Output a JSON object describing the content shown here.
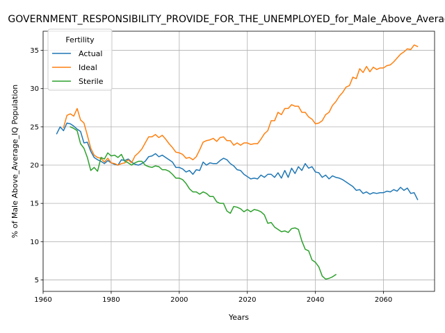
{
  "chart_data": {
    "type": "line",
    "title": "GOVERNMENT_RESPONSIBILITY_PROVIDE_FOR_THE_UNEMPLOYED_for_Male_Above_Average_IQ",
    "xlabel": "Years",
    "ylabel": "% of Male Above_Average_IQ Population",
    "xlim": [
      1960,
      2075
    ],
    "ylim": [
      3.5,
      37.5
    ],
    "xticks": [
      1960,
      1980,
      2000,
      2020,
      2040,
      2060
    ],
    "yticks": [
      5,
      10,
      15,
      20,
      25,
      30,
      35
    ],
    "grid": true,
    "legend": {
      "title": "Fertility",
      "position": "upper-left"
    },
    "series": [
      {
        "name": "Actual",
        "color": "#1f77b4",
        "x": [
          1964,
          1965,
          1966,
          1967,
          1968,
          1969,
          1970,
          1971,
          1972,
          1973,
          1974,
          1975,
          1976,
          1977,
          1978,
          1979,
          1980,
          1981,
          1982,
          1983,
          1984,
          1985,
          1986,
          1987,
          1988,
          1989,
          1990,
          1991,
          1992,
          1993,
          1994,
          1995,
          1996,
          1997,
          1998,
          1999,
          2000,
          2001,
          2002,
          2003,
          2004,
          2005,
          2006,
          2007,
          2008,
          2009,
          2010,
          2011,
          2012,
          2013,
          2014,
          2015,
          2016,
          2017,
          2018,
          2019,
          2020,
          2021,
          2022,
          2023,
          2024,
          2025,
          2026,
          2027,
          2028,
          2029,
          2030,
          2031,
          2032,
          2033,
          2034,
          2035,
          2036,
          2037,
          2038,
          2039,
          2040,
          2041,
          2042,
          2043,
          2044,
          2045,
          2046,
          2047,
          2048,
          2049,
          2050,
          2051,
          2052,
          2053,
          2054,
          2055,
          2056,
          2057,
          2058,
          2059,
          2060,
          2061,
          2062,
          2063,
          2064,
          2065,
          2066,
          2067,
          2068,
          2069,
          2070
        ],
        "y": [
          24.1,
          25.0,
          24.5,
          25.5,
          25.4,
          25.1,
          24.7,
          24.4,
          22.9,
          23.0,
          21.8,
          21.0,
          20.7,
          20.5,
          20.2,
          20.6,
          20.3,
          20.1,
          20.0,
          20.7,
          20.6,
          20.8,
          20.4,
          20.1,
          20.0,
          20.2,
          20.5,
          21.1,
          21.2,
          21.5,
          21.1,
          21.3,
          21.0,
          20.7,
          20.4,
          19.7,
          19.7,
          19.5,
          19.1,
          19.3,
          18.8,
          19.4,
          19.3,
          20.4,
          20.0,
          20.3,
          20.2,
          20.2,
          20.6,
          20.9,
          20.7,
          20.2,
          19.9,
          19.4,
          19.3,
          18.8,
          18.5,
          18.2,
          18.3,
          18.2,
          18.7,
          18.4,
          18.8,
          18.8,
          18.4,
          19.0,
          18.3,
          19.3,
          18.4,
          19.6,
          18.9,
          19.8,
          19.3,
          20.2,
          19.6,
          19.8,
          19.1,
          19.0,
          18.4,
          18.7,
          18.2,
          18.6,
          18.4,
          18.3,
          18.1,
          17.8,
          17.5,
          17.2,
          16.7,
          16.8,
          16.3,
          16.5,
          16.2,
          16.4,
          16.3,
          16.4,
          16.4,
          16.6,
          16.5,
          16.8,
          16.6,
          17.1,
          16.7,
          17.0,
          16.3,
          16.4,
          15.5
        ]
      },
      {
        "name": "Ideal",
        "color": "#ff7f0e",
        "x": [
          1966,
          1967,
          1968,
          1969,
          1970,
          1971,
          1972,
          1973,
          1974,
          1975,
          1976,
          1977,
          1978,
          1979,
          1980,
          1981,
          1982,
          1983,
          1984,
          1985,
          1986,
          1987,
          1988,
          1989,
          1990,
          1991,
          1992,
          1993,
          1994,
          1995,
          1996,
          1997,
          1998,
          1999,
          2000,
          2001,
          2002,
          2003,
          2004,
          2005,
          2006,
          2007,
          2008,
          2009,
          2010,
          2011,
          2012,
          2013,
          2014,
          2015,
          2016,
          2017,
          2018,
          2019,
          2020,
          2021,
          2022,
          2023,
          2024,
          2025,
          2026,
          2027,
          2028,
          2029,
          2030,
          2031,
          2032,
          2033,
          2034,
          2035,
          2036,
          2037,
          2038,
          2039,
          2040,
          2041,
          2042,
          2043,
          2044,
          2045,
          2046,
          2047,
          2048,
          2049,
          2050,
          2051,
          2052,
          2053,
          2054,
          2055,
          2056,
          2057,
          2058,
          2059,
          2060,
          2061,
          2062,
          2063,
          2064,
          2065,
          2066,
          2067,
          2068,
          2069,
          2070
        ],
        "y": [
          24.9,
          26.5,
          26.7,
          26.4,
          27.4,
          25.9,
          25.5,
          23.9,
          22.2,
          21.3,
          21.0,
          20.9,
          20.4,
          20.9,
          20.3,
          20.2,
          20.0,
          20.2,
          20.3,
          20.7,
          20.3,
          21.2,
          21.6,
          22.1,
          22.9,
          23.7,
          23.7,
          24.0,
          23.6,
          23.9,
          23.4,
          22.8,
          22.3,
          21.7,
          21.6,
          21.4,
          20.9,
          21.0,
          20.7,
          21.1,
          22.0,
          23.0,
          23.2,
          23.3,
          23.5,
          23.1,
          23.6,
          23.7,
          23.2,
          23.2,
          22.6,
          22.9,
          22.6,
          22.9,
          22.9,
          22.7,
          22.8,
          22.8,
          23.4,
          24.1,
          24.5,
          25.8,
          25.8,
          26.9,
          26.6,
          27.4,
          27.4,
          27.9,
          27.7,
          27.7,
          26.9,
          26.9,
          26.3,
          26.0,
          25.4,
          25.5,
          25.8,
          26.6,
          26.9,
          27.8,
          28.3,
          29.0,
          29.5,
          30.2,
          30.4,
          31.5,
          31.3,
          32.6,
          32.1,
          32.9,
          32.2,
          32.8,
          32.5,
          32.7,
          32.7,
          33.0,
          33.1,
          33.5,
          34.0,
          34.5,
          34.8,
          35.2,
          35.1,
          35.7,
          35.5
        ]
      },
      {
        "name": "Sterile",
        "color": "#2ca02c",
        "x": [
          1968,
          1969,
          1970,
          1971,
          1972,
          1973,
          1974,
          1975,
          1976,
          1977,
          1978,
          1979,
          1980,
          1981,
          1982,
          1983,
          1984,
          1985,
          1986,
          1987,
          1988,
          1989,
          1990,
          1991,
          1992,
          1993,
          1994,
          1995,
          1996,
          1997,
          1998,
          1999,
          2000,
          2001,
          2002,
          2003,
          2004,
          2005,
          2006,
          2007,
          2008,
          2009,
          2010,
          2011,
          2012,
          2013,
          2014,
          2015,
          2016,
          2017,
          2018,
          2019,
          2020,
          2021,
          2022,
          2023,
          2024,
          2025,
          2026,
          2027,
          2028,
          2029,
          2030,
          2031,
          2032,
          2033,
          2034,
          2035,
          2036,
          2037,
          2038,
          2039,
          2040,
          2041,
          2042,
          2043,
          2044,
          2045,
          2046
        ],
        "y": [
          25.0,
          24.8,
          24.5,
          22.8,
          22.2,
          21.0,
          19.3,
          19.7,
          19.2,
          21.0,
          20.8,
          21.6,
          21.2,
          21.3,
          21.0,
          21.4,
          20.5,
          20.3,
          20.0,
          20.3,
          20.5,
          20.5,
          20.0,
          19.8,
          19.7,
          19.9,
          19.8,
          19.4,
          19.4,
          19.2,
          18.8,
          18.3,
          18.3,
          18.1,
          17.6,
          16.9,
          16.5,
          16.5,
          16.2,
          16.5,
          16.3,
          15.9,
          15.9,
          15.2,
          15.0,
          15.0,
          14.0,
          13.7,
          14.6,
          14.5,
          14.3,
          13.9,
          14.2,
          13.9,
          14.2,
          14.1,
          13.9,
          13.5,
          12.4,
          12.5,
          11.9,
          11.6,
          11.3,
          11.4,
          11.2,
          11.7,
          11.8,
          11.6,
          10.1,
          9.0,
          8.8,
          7.6,
          7.3,
          6.7,
          5.5,
          5.1,
          5.2,
          5.4,
          5.7
        ]
      }
    ]
  }
}
